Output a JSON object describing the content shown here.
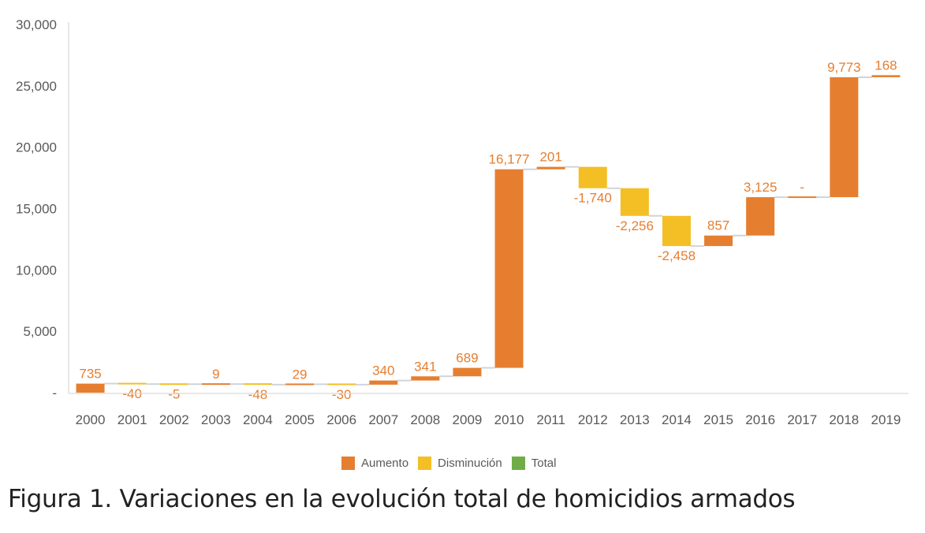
{
  "chart_data": {
    "type": "waterfall",
    "title": "",
    "xlabel": "",
    "ylabel": "",
    "ylim": [
      0,
      30000
    ],
    "yticks": [
      0,
      5000,
      10000,
      15000,
      20000,
      25000,
      30000
    ],
    "ytick_labels": [
      "-",
      "5,000",
      "10,000",
      "15,000",
      "20,000",
      "25,000",
      "30,000"
    ],
    "grid": false,
    "legend_position": "bottom",
    "categories": [
      "2000",
      "2001",
      "2002",
      "2003",
      "2004",
      "2005",
      "2006",
      "2007",
      "2008",
      "2009",
      "2010",
      "2011",
      "2012",
      "2013",
      "2014",
      "2015",
      "2016",
      "2017",
      "2018",
      "2019"
    ],
    "values": [
      735,
      -40,
      -5,
      9,
      -48,
      29,
      -30,
      340,
      341,
      689,
      16177,
      201,
      -1740,
      -2256,
      -2458,
      857,
      3125,
      0,
      9773,
      168
    ],
    "data_labels": [
      "735",
      "-40",
      "-5",
      "9",
      "-48",
      "29",
      "-30",
      "340",
      "341",
      "689",
      "16,177",
      "201",
      "-1,740",
      "-2,256",
      "-2,458",
      "857",
      "3,125",
      "-",
      "9,773",
      "168"
    ],
    "running_total": [
      735,
      695,
      690,
      699,
      651,
      680,
      650,
      990,
      1331,
      2020,
      18197,
      18398,
      16658,
      14402,
      11944,
      12801,
      15926,
      15926,
      25699,
      25867
    ],
    "series": [
      {
        "name": "Aumento",
        "color": "#E67E30"
      },
      {
        "name": "Disminución",
        "color": "#F4BE25"
      },
      {
        "name": "Total",
        "color": "#70AD47"
      }
    ]
  },
  "legend": {
    "items": [
      {
        "label": "Aumento",
        "color": "#E67E30"
      },
      {
        "label": "Disminución",
        "color": "#F4BE25"
      },
      {
        "label": "Total",
        "color": "#70AD47"
      }
    ]
  },
  "caption": "Figura 1. Variaciones en la evolución total de homicidios armados"
}
